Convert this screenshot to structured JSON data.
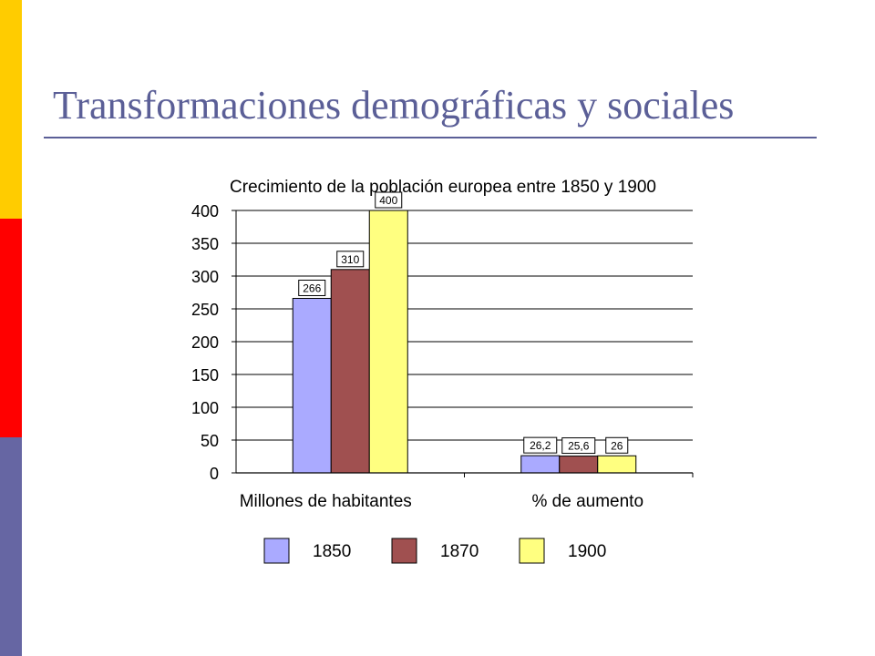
{
  "slide": {
    "title": "Transformaciones demográficas y sociales",
    "title_color": "#5b5f97",
    "rule_color": "#5b5f97",
    "side_colors": [
      "#ffcc00",
      "#ff0000",
      "#6666a3"
    ]
  },
  "chart_data": {
    "type": "bar",
    "title": "Crecimiento de la población europea entre 1850 y 1900",
    "categories": [
      "Millones de habitantes",
      "% de aumento"
    ],
    "series": [
      {
        "name": "1850",
        "values": [
          266,
          26.2
        ],
        "labels": [
          "266",
          "26,2"
        ],
        "color": "#aaaaff"
      },
      {
        "name": "1870",
        "values": [
          310,
          25.6
        ],
        "labels": [
          "310",
          "25,6"
        ],
        "color": "#a05050"
      },
      {
        "name": "1900",
        "values": [
          400,
          26
        ],
        "labels": [
          "400",
          "26"
        ],
        "color": "#ffff80"
      }
    ],
    "ylim": [
      0,
      400
    ],
    "yticks": [
      "0",
      "50",
      "100",
      "150",
      "200",
      "250",
      "300",
      "350",
      "400"
    ],
    "grid": true,
    "legend_position": "bottom"
  }
}
